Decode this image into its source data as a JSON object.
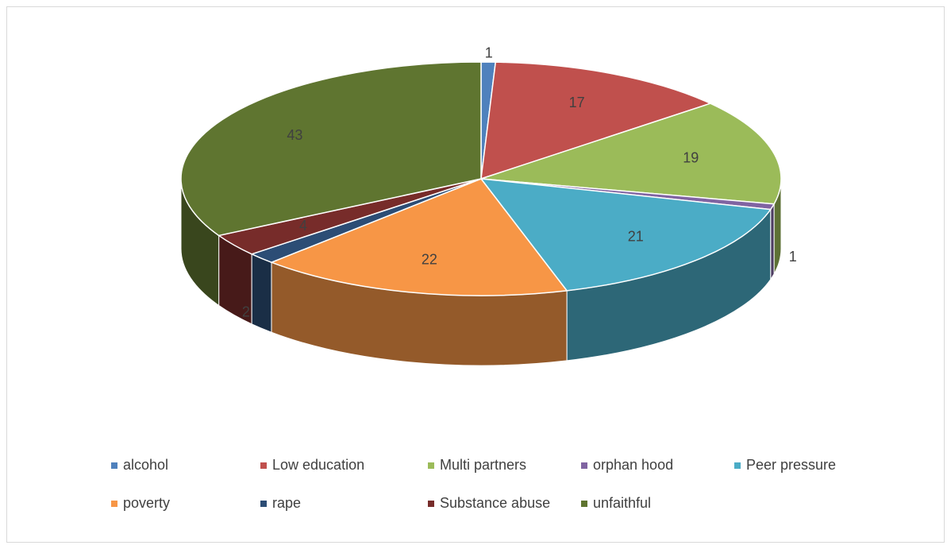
{
  "chart_data": {
    "type": "pie3d",
    "categories": [
      "alcohol",
      "Low education",
      "Multi partners",
      "orphan hood",
      "Peer pressure",
      "poverty",
      "rape",
      "Substance abuse",
      "unfaithful"
    ],
    "values": [
      1,
      17,
      19,
      1,
      21,
      22,
      2,
      4,
      43
    ],
    "colors": [
      "#4f81bd",
      "#c0504d",
      "#9bbb59",
      "#8064a2",
      "#4bacc6",
      "#f79646",
      "#2c4d75",
      "#772c2a",
      "#5f7530"
    ],
    "legend": "bottom"
  }
}
